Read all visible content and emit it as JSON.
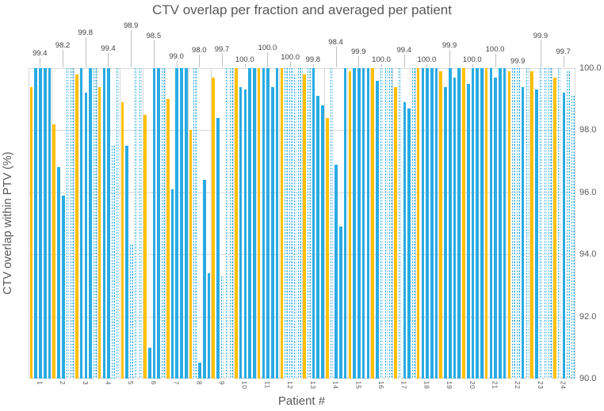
{
  "title": "CTV overlap per fraction and averaged per patient",
  "x_axis": {
    "label": "Patient #"
  },
  "y_axis": {
    "label": "CTV overlap within PTV (%)",
    "side": "right",
    "ticks": [
      "100.0",
      "98.0",
      "96.0",
      "94.0",
      "92.0",
      "90.0"
    ],
    "tick_values": [
      100,
      98,
      96,
      94,
      92,
      90
    ]
  },
  "colors": {
    "fraction_bar": "#29abe3",
    "average_bar": "#ffc000",
    "gridline": "#d9d9d9",
    "leader_line": "#bfbfbf",
    "title_text": "#595959",
    "data_label_text": "#404040"
  },
  "chart_data": {
    "type": "bar",
    "title": "CTV overlap per fraction and averaged per patient",
    "xlabel": "Patient #",
    "ylabel": "CTV overlap within PTV (%)",
    "ylim": [
      90,
      100
    ],
    "grid": true,
    "legend": "none",
    "bar_styles": {
      "s": "solid cyan fraction bar",
      "d": "dotted cyan fraction bar",
      "a": "orange per-patient average bar"
    },
    "categories": [
      1,
      2,
      3,
      4,
      5,
      6,
      7,
      8,
      9,
      10,
      11,
      12,
      13,
      14,
      15,
      16,
      17,
      18,
      19,
      20,
      21,
      22,
      23,
      24
    ],
    "patients": [
      {
        "id": 1,
        "average": 99.4,
        "label": "99.4",
        "label_y": 62,
        "fractions": [
          {
            "v": 100,
            "style": "s"
          },
          {
            "v": 100,
            "style": "s"
          },
          {
            "v": 100,
            "style": "s"
          },
          {
            "v": 100,
            "style": "s"
          }
        ]
      },
      {
        "id": 2,
        "average": 98.2,
        "label": "98.2",
        "label_y": 52,
        "fractions": [
          {
            "v": 96.8,
            "style": "s"
          },
          {
            "v": 95.9,
            "style": "s"
          },
          {
            "v": 100,
            "style": "d"
          },
          {
            "v": 100,
            "style": "d"
          }
        ]
      },
      {
        "id": 3,
        "average": 99.8,
        "label": "99.8",
        "label_y": 36,
        "fractions": [
          {
            "v": 100,
            "style": "s"
          },
          {
            "v": 99.2,
            "style": "s"
          },
          {
            "v": 100,
            "style": "s"
          },
          {
            "v": 100,
            "style": "d"
          }
        ]
      },
      {
        "id": 4,
        "average": 99.4,
        "label": "99.4",
        "label_y": 56,
        "fractions": [
          {
            "v": 100,
            "style": "s"
          },
          {
            "v": 100,
            "style": "s"
          },
          {
            "v": 97.5,
            "style": "d"
          },
          {
            "v": 100,
            "style": "d"
          }
        ]
      },
      {
        "id": 5,
        "average": 98.9,
        "label": "98.9",
        "label_y": 27,
        "fractions": [
          {
            "v": 97.5,
            "style": "s"
          },
          {
            "v": 94.3,
            "style": "d"
          },
          {
            "v": 100,
            "style": "d"
          },
          {
            "v": 100,
            "style": "d"
          }
        ]
      },
      {
        "id": 6,
        "average": 98.5,
        "label": "98.5",
        "label_y": 40,
        "fractions": [
          {
            "v": 91.0,
            "style": "s"
          },
          {
            "v": 100,
            "style": "s"
          },
          {
            "v": 100,
            "style": "s"
          },
          {
            "v": 100,
            "style": "d"
          }
        ]
      },
      {
        "id": 7,
        "average": 99.0,
        "label": "99.0",
        "label_y": 66,
        "fractions": [
          {
            "v": 96.1,
            "style": "s"
          },
          {
            "v": 100,
            "style": "s"
          },
          {
            "v": 100,
            "style": "s"
          },
          {
            "v": 100,
            "style": "s"
          }
        ]
      },
      {
        "id": 8,
        "average": 98.0,
        "label": "98.0",
        "label_y": 58,
        "fractions": [
          {
            "v": 100,
            "style": "d"
          },
          {
            "v": 90.5,
            "style": "s"
          },
          {
            "v": 96.4,
            "style": "s"
          },
          {
            "v": 93.4,
            "style": "s"
          }
        ]
      },
      {
        "id": 9,
        "average": 99.7,
        "label": "99.7",
        "label_y": 57,
        "fractions": [
          {
            "v": 98.4,
            "style": "s"
          },
          {
            "v": 93.3,
            "style": "d"
          },
          {
            "v": 100,
            "style": "d"
          },
          {
            "v": 100,
            "style": "d"
          }
        ]
      },
      {
        "id": 10,
        "average": 100.0,
        "label": "100.0",
        "label_y": 70,
        "fractions": [
          {
            "v": 99.4,
            "style": "s"
          },
          {
            "v": 99.3,
            "style": "s"
          },
          {
            "v": 100,
            "style": "s"
          },
          {
            "v": 100,
            "style": "s"
          }
        ]
      },
      {
        "id": 11,
        "average": 100.0,
        "label": "100.0",
        "label_y": 55,
        "fractions": [
          {
            "v": 100,
            "style": "s"
          },
          {
            "v": 100,
            "style": "s"
          },
          {
            "v": 99.4,
            "style": "s"
          },
          {
            "v": 100,
            "style": "s"
          }
        ]
      },
      {
        "id": 12,
        "average": 100.0,
        "label": "100.0",
        "label_y": 67,
        "fractions": [
          {
            "v": 100,
            "style": "d"
          },
          {
            "v": 100,
            "style": "d"
          },
          {
            "v": 99.8,
            "style": "d"
          },
          {
            "v": 100,
            "style": "d"
          }
        ]
      },
      {
        "id": 13,
        "average": 99.8,
        "label": "99.8",
        "label_y": 70,
        "fractions": [
          {
            "v": 100,
            "style": "d"
          },
          {
            "v": 100,
            "style": "s"
          },
          {
            "v": 99.1,
            "style": "s"
          },
          {
            "v": 98.8,
            "style": "s"
          }
        ]
      },
      {
        "id": 14,
        "average": 98.4,
        "label": "98.4",
        "label_y": 48,
        "fractions": [
          {
            "v": 100,
            "style": "d"
          },
          {
            "v": 96.9,
            "style": "s"
          },
          {
            "v": 94.9,
            "style": "s"
          },
          {
            "v": 100,
            "style": "s"
          }
        ]
      },
      {
        "id": 15,
        "average": 99.9,
        "label": "99.9",
        "label_y": 60,
        "fractions": [
          {
            "v": 100,
            "style": "s"
          },
          {
            "v": 100,
            "style": "s"
          },
          {
            "v": 100,
            "style": "s"
          },
          {
            "v": 100,
            "style": "s"
          }
        ]
      },
      {
        "id": 16,
        "average": 100.0,
        "label": "100.0",
        "label_y": 70,
        "fractions": [
          {
            "v": 99.6,
            "style": "s"
          },
          {
            "v": 100,
            "style": "d"
          },
          {
            "v": 100,
            "style": "d"
          },
          {
            "v": 100,
            "style": "d"
          }
        ]
      },
      {
        "id": 17,
        "average": 99.4,
        "label": "99.4",
        "label_y": 58,
        "fractions": [
          {
            "v": 100,
            "style": "d"
          },
          {
            "v": 98.9,
            "style": "s"
          },
          {
            "v": 98.7,
            "style": "s"
          },
          {
            "v": 100,
            "style": "d"
          }
        ]
      },
      {
        "id": 18,
        "average": 100.0,
        "label": "100.0",
        "label_y": 70,
        "fractions": [
          {
            "v": 100,
            "style": "s"
          },
          {
            "v": 100,
            "style": "s"
          },
          {
            "v": 100,
            "style": "s"
          },
          {
            "v": 100,
            "style": "s"
          }
        ]
      },
      {
        "id": 19,
        "average": 99.9,
        "label": "99.9",
        "label_y": 52,
        "fractions": [
          {
            "v": 99.4,
            "style": "s"
          },
          {
            "v": 100,
            "style": "s"
          },
          {
            "v": 99.7,
            "style": "s"
          },
          {
            "v": 100,
            "style": "s"
          }
        ]
      },
      {
        "id": 20,
        "average": 100.0,
        "label": "100.0",
        "label_y": 70,
        "fractions": [
          {
            "v": 99.5,
            "style": "s"
          },
          {
            "v": 100,
            "style": "s"
          },
          {
            "v": 100,
            "style": "s"
          },
          {
            "v": 100,
            "style": "s"
          }
        ]
      },
      {
        "id": 21,
        "average": 100.0,
        "label": "100.0",
        "label_y": 57,
        "fractions": [
          {
            "v": 100,
            "style": "s"
          },
          {
            "v": 99.7,
            "style": "s"
          },
          {
            "v": 100,
            "style": "s"
          },
          {
            "v": 100,
            "style": "s"
          }
        ]
      },
      {
        "id": 22,
        "average": 99.9,
        "label": "99.9",
        "label_y": 72,
        "fractions": [
          {
            "v": 100,
            "style": "d"
          },
          {
            "v": 100,
            "style": "d"
          },
          {
            "v": 99.4,
            "style": "s"
          },
          {
            "v": 100,
            "style": "d"
          }
        ]
      },
      {
        "id": 23,
        "average": 99.9,
        "label": "99.9",
        "label_y": 40,
        "fractions": [
          {
            "v": 99.3,
            "style": "s"
          },
          {
            "v": 100,
            "style": "d"
          },
          {
            "v": 100,
            "style": "d"
          },
          {
            "v": 100,
            "style": "d"
          }
        ]
      },
      {
        "id": 24,
        "average": 99.7,
        "label": "99.7",
        "label_y": 60,
        "fractions": [
          {
            "v": 100,
            "style": "d"
          },
          {
            "v": 99.2,
            "style": "s"
          },
          {
            "v": 99.9,
            "style": "d"
          },
          {
            "v": 99.1,
            "style": "d"
          }
        ]
      }
    ]
  }
}
